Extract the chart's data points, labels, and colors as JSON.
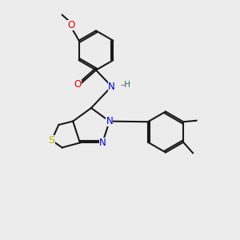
{
  "bg": "#ececec",
  "bc": "#1a1a1a",
  "O_color": "#dd0000",
  "N_color": "#0000cc",
  "S_color": "#b8b800",
  "H_color": "#336666",
  "lw": 1.5,
  "dbl_off": 0.075,
  "figsize": [
    3.0,
    3.0
  ],
  "dpi": 100,
  "xlim": [
    -0.5,
    9.5
  ],
  "ylim": [
    -0.5,
    9.5
  ]
}
